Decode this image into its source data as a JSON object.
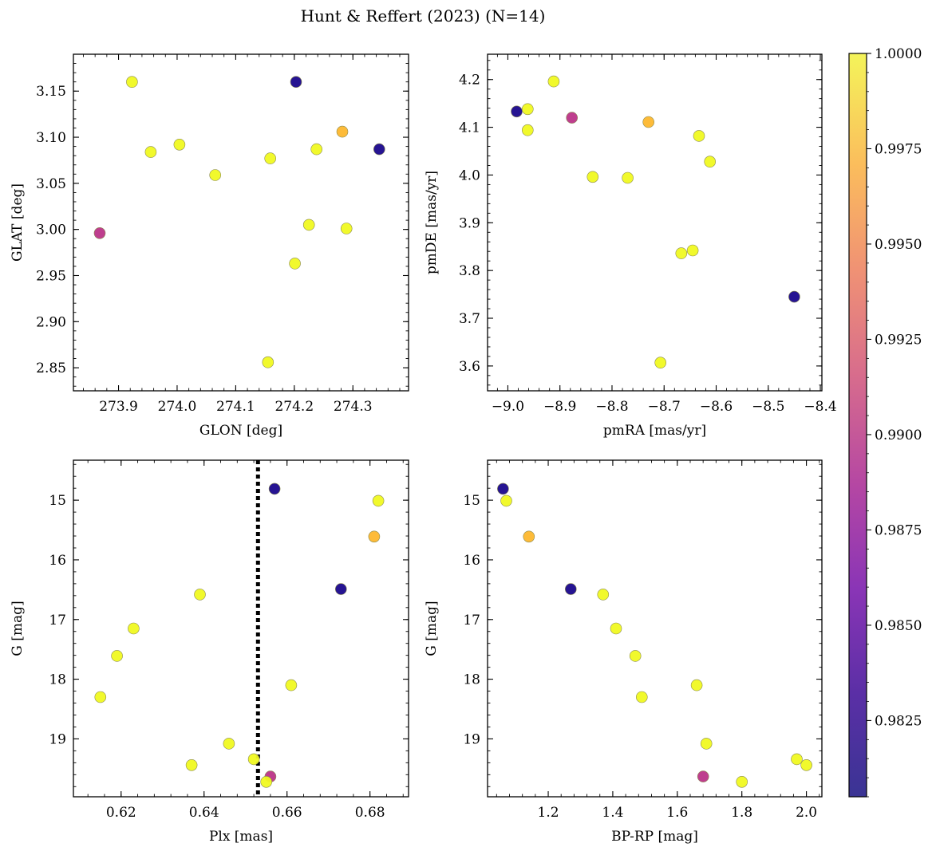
{
  "figure": {
    "title": "Hunt & Reffert (2023) (N=14)"
  },
  "colorbar": {
    "colormap": "plasma",
    "vmin": 0.9805,
    "vmax": 1.0,
    "ticks": [
      0.9825,
      0.985,
      0.9875,
      0.99,
      0.9925,
      0.995,
      0.9975,
      1.0
    ],
    "tick_labels": [
      "0.9825",
      "0.9850",
      "0.9875",
      "0.9900",
      "0.9925",
      "0.9950",
      "0.9975",
      "1.0000"
    ]
  },
  "stars": [
    {
      "glon": 273.923,
      "glat": 3.16,
      "pmra": -8.912,
      "pmde": 4.196,
      "plx": 0.682,
      "g": 15.01,
      "bprp": 1.07,
      "p": 1.0
    },
    {
      "glon": 274.203,
      "glat": 3.16,
      "pmra": -8.983,
      "pmde": 4.133,
      "plx": 0.657,
      "g": 14.81,
      "bprp": 1.06,
      "p": 0.981
    },
    {
      "glon": 273.955,
      "glat": 3.084,
      "pmra": -8.962,
      "pmde": 4.138,
      "plx": 0.639,
      "g": 16.58,
      "bprp": 1.37,
      "p": 1.0
    },
    {
      "glon": 274.004,
      "glat": 3.092,
      "pmra": -8.962,
      "pmde": 4.094,
      "plx": 0.623,
      "g": 17.15,
      "bprp": 1.41,
      "p": 1.0
    },
    {
      "glon": 274.282,
      "glat": 3.106,
      "pmra": -8.73,
      "pmde": 4.111,
      "plx": 0.681,
      "g": 15.61,
      "bprp": 1.14,
      "p": 0.997
    },
    {
      "glon": 274.345,
      "glat": 3.087,
      "pmra": -8.45,
      "pmde": 3.745,
      "plx": 0.673,
      "g": 16.49,
      "bprp": 1.27,
      "p": 0.981
    },
    {
      "glon": 274.238,
      "glat": 3.087,
      "pmra": -8.633,
      "pmde": 4.082,
      "plx": 0.619,
      "g": 17.61,
      "bprp": 1.47,
      "p": 1.0
    },
    {
      "glon": 274.065,
      "glat": 3.059,
      "pmra": -8.837,
      "pmde": 3.996,
      "plx": 0.615,
      "g": 18.3,
      "bprp": 1.49,
      "p": 1.0
    },
    {
      "glon": 274.159,
      "glat": 3.077,
      "pmra": -8.77,
      "pmde": 3.994,
      "plx": 0.661,
      "g": 18.1,
      "bprp": 1.66,
      "p": 1.0
    },
    {
      "glon": 273.868,
      "glat": 2.996,
      "pmra": -8.877,
      "pmde": 4.12,
      "plx": 0.656,
      "g": 19.63,
      "bprp": 1.68,
      "p": 0.989
    },
    {
      "glon": 274.225,
      "glat": 3.005,
      "pmra": -8.612,
      "pmde": 4.028,
      "plx": 0.646,
      "g": 19.08,
      "bprp": 1.69,
      "p": 1.0
    },
    {
      "glon": 274.289,
      "glat": 3.001,
      "pmra": -8.667,
      "pmde": 3.836,
      "plx": 0.637,
      "g": 19.44,
      "bprp": 2.0,
      "p": 1.0
    },
    {
      "glon": 274.201,
      "glat": 2.963,
      "pmra": -8.645,
      "pmde": 3.842,
      "plx": 0.652,
      "g": 19.34,
      "bprp": 1.97,
      "p": 1.0
    },
    {
      "glon": 274.155,
      "glat": 2.856,
      "pmra": -8.707,
      "pmde": 3.607,
      "plx": 0.655,
      "g": 19.72,
      "bprp": 1.8,
      "p": 1.0
    }
  ],
  "chart_data": [
    {
      "type": "scatter",
      "x_field": "glon",
      "y_field": "glat",
      "xlabel": "GLON [deg]",
      "ylabel": "GLAT [deg]",
      "xlim": [
        273.823,
        274.395
      ],
      "ylim": [
        2.825,
        3.19
      ],
      "x_ticks": [
        273.9,
        274.0,
        274.1,
        274.2,
        274.3
      ],
      "x_tick_labels": [
        "273.9",
        "274.0",
        "274.1",
        "274.2",
        "274.3"
      ],
      "y_ticks": [
        2.85,
        2.9,
        2.95,
        3.0,
        3.05,
        3.1,
        3.15
      ],
      "y_tick_labels": [
        "2.85",
        "2.90",
        "2.95",
        "3.00",
        "3.05",
        "3.10",
        "3.15"
      ],
      "y_inverted": false
    },
    {
      "type": "scatter",
      "x_field": "pmra",
      "y_field": "pmde",
      "xlabel": "pmRA [mas/yr]",
      "ylabel": "pmDE [mas/yr]",
      "xlim": [
        -9.039,
        -8.397
      ],
      "ylim": [
        3.548,
        4.253
      ],
      "x_ticks": [
        -9.0,
        -8.9,
        -8.8,
        -8.7,
        -8.6,
        -8.5,
        -8.4
      ],
      "x_tick_labels": [
        "−9.0",
        "−8.9",
        "−8.8",
        "−8.7",
        "−8.6",
        "−8.5",
        "−8.4"
      ],
      "y_ticks": [
        3.6,
        3.7,
        3.8,
        3.9,
        4.0,
        4.1,
        4.2
      ],
      "y_tick_labels": [
        "3.6",
        "3.7",
        "3.8",
        "3.9",
        "4.0",
        "4.1",
        "4.2"
      ],
      "y_inverted": false
    },
    {
      "type": "scatter",
      "x_field": "plx",
      "y_field": "g",
      "xlabel": "Plx [mas]",
      "ylabel": "G [mag]",
      "xlim": [
        0.6085,
        0.6893
      ],
      "ylim": [
        14.33,
        19.97
      ],
      "x_ticks": [
        0.62,
        0.64,
        0.66,
        0.68
      ],
      "x_tick_labels": [
        "0.62",
        "0.64",
        "0.66",
        "0.68"
      ],
      "y_ticks": [
        15,
        16,
        17,
        18,
        19
      ],
      "y_tick_labels": [
        "15",
        "16",
        "17",
        "18",
        "19"
      ],
      "y_inverted": true,
      "vline": {
        "x": 0.653,
        "style": "dotted"
      }
    },
    {
      "type": "scatter",
      "x_field": "bprp",
      "y_field": "g",
      "xlabel": "BP-RP [mag]",
      "ylabel": "G [mag]",
      "xlim": [
        1.012,
        2.048
      ],
      "ylim": [
        14.33,
        19.97
      ],
      "x_ticks": [
        1.2,
        1.4,
        1.6,
        1.8,
        2.0
      ],
      "x_tick_labels": [
        "1.2",
        "1.4",
        "1.6",
        "1.8",
        "2.0"
      ],
      "y_ticks": [
        15,
        16,
        17,
        18,
        19
      ],
      "y_tick_labels": [
        "15",
        "16",
        "17",
        "18",
        "19"
      ],
      "y_inverted": true
    }
  ]
}
